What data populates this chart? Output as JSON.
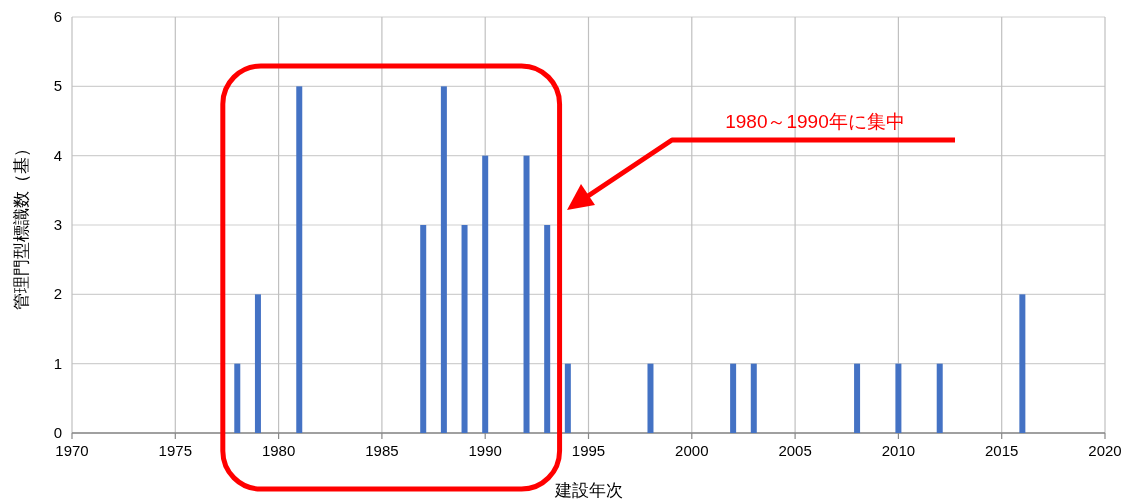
{
  "chart_data": {
    "type": "bar",
    "xlabel": "建設年次",
    "ylabel": "管理門型標識数（基）",
    "x": [
      1978,
      1979,
      1981,
      1987,
      1988,
      1989,
      1990,
      1992,
      1993,
      1994,
      1998,
      2002,
      2003,
      2008,
      2010,
      2012,
      2016
    ],
    "values": [
      1,
      2,
      5,
      3,
      5,
      3,
      4,
      4,
      3,
      1,
      1,
      1,
      1,
      1,
      1,
      1,
      2
    ],
    "color": "#4472c4",
    "xlim": [
      1970,
      2020
    ],
    "xticks": [
      1970,
      1975,
      1980,
      1985,
      1990,
      1995,
      2000,
      2005,
      2010,
      2015,
      2020
    ],
    "ylim": [
      0,
      6
    ],
    "yticks": [
      0,
      1,
      2,
      3,
      4,
      5,
      6
    ],
    "grid": true,
    "annotations": [
      "1980～1990年に集中"
    ]
  }
}
